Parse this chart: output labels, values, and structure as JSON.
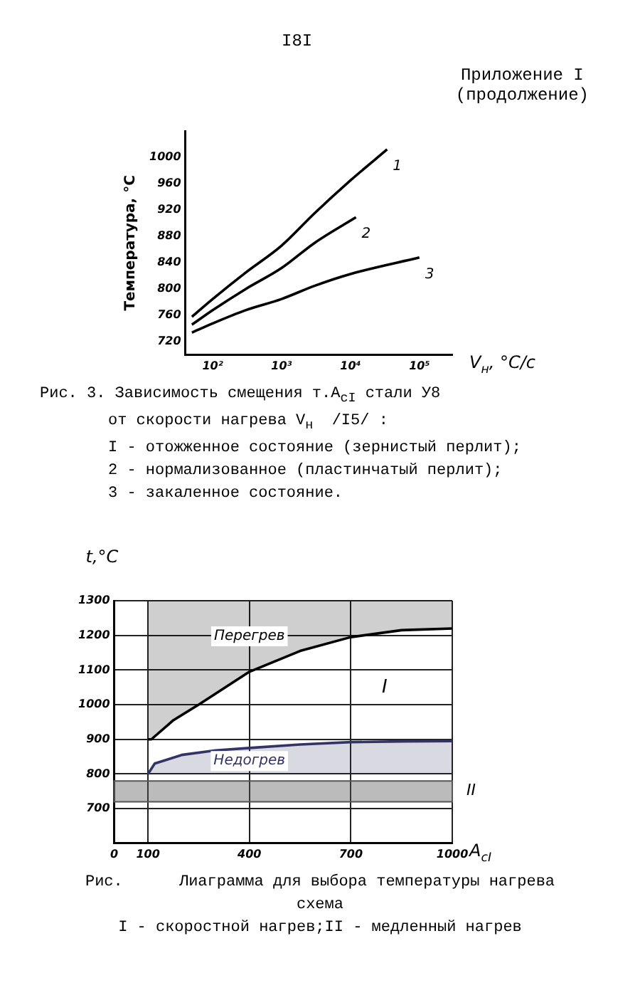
{
  "chart_data": [
    {
      "type": "other",
      "title": "Приложение I",
      "subtitle": "(продолжение)",
      "annotations": [
        "I8I"
      ]
    },
    {
      "type": "line",
      "xlabel": "V$_{н}$, °C/c",
      "ylabel": "Температура, °С",
      "log": "x",
      "legend": false,
      "grid": false,
      "marker": "none",
      "line_style": "solid",
      "xlim": [
        40,
        300000
      ],
      "xticks": [
        {
          "value": 100,
          "label": "10²"
        },
        {
          "value": 1000,
          "label": "10³"
        },
        {
          "value": 10000,
          "label": "10⁴"
        },
        {
          "value": 100000,
          "label": "10⁵"
        }
      ],
      "ylim": [
        700,
        1040
      ],
      "yticks": [
        720,
        760,
        800,
        840,
        880,
        920,
        960,
        1000
      ],
      "series": [
        {
          "name": "1",
          "color": "#000000",
          "x": [
            50,
            100,
            300,
            1000,
            3000,
            10000,
            34000
          ],
          "values": [
            758,
            785,
            825,
            866,
            915,
            965,
            1012
          ]
        },
        {
          "name": "2",
          "color": "#000000",
          "x": [
            50,
            100,
            300,
            1000,
            3000,
            12000
          ],
          "values": [
            746,
            768,
            800,
            832,
            870,
            909
          ]
        },
        {
          "name": "3",
          "color": "#000000",
          "x": [
            50,
            100,
            300,
            1000,
            3000,
            10000,
            100000
          ],
          "values": [
            734,
            748,
            768,
            785,
            805,
            823,
            848
          ]
        }
      ],
      "annotations": [
        "Рис. 3. Зависимость смещения т.A$_{cI}$ стали У8",
        "от скорости нагрева V$_{н}$  /I5/ :",
        "I - отожженное состояние (зернистый перлит);",
        "2 - нормализованное (пластинчатый перлит);",
        "3 - закаленное состояние."
      ]
    },
    {
      "type": "line",
      "xlabel": "A$_{cI}$",
      "ylabel": "t,°C",
      "legend": false,
      "grid": true,
      "marker": "none",
      "line_style": "solid",
      "xlim": [
        0,
        1000
      ],
      "xticks": [
        0,
        100,
        400,
        700,
        1000
      ],
      "ylim": [
        600,
        1300
      ],
      "yticks": [
        700,
        800,
        900,
        1000,
        1100,
        1200,
        1300
      ],
      "series": [
        {
          "name": "Перегрев",
          "type": "line",
          "color": "#000000",
          "x": [
            100,
            110,
            175,
            250,
            400,
            550,
            700,
            850,
            1000
          ],
          "values": [
            900,
            900,
            955,
            1000,
            1095,
            1155,
            1195,
            1215,
            1220
          ],
          "lower": [
            900,
            900,
            955,
            1000,
            1095,
            1155,
            1195,
            1215,
            1220
          ],
          "upper": [
            1300,
            1300,
            1300,
            1300,
            1300,
            1300,
            1300,
            1300,
            1300
          ]
        },
        {
          "name": "Недогрев",
          "type": "line",
          "color": "#333366",
          "x": [
            100,
            120,
            200,
            300,
            400,
            550,
            700,
            850,
            1000
          ],
          "values": [
            800,
            830,
            855,
            868,
            875,
            885,
            892,
            894,
            895
          ],
          "lower": [
            800,
            800,
            800,
            800,
            800,
            800,
            800,
            800,
            800
          ],
          "upper": [
            800,
            830,
            855,
            868,
            875,
            885,
            892,
            894,
            895
          ]
        }
      ],
      "bands": [
        {
          "axis": "y",
          "from": 720,
          "to": 780,
          "label": "II",
          "color": "#555555"
        }
      ],
      "annotations": [
        "I",
        "Рис.      Лиаграмма для выбора температуры нагрева",
        "схема",
        "I - скоростной нагрев;II - медленный нагрев"
      ]
    }
  ]
}
